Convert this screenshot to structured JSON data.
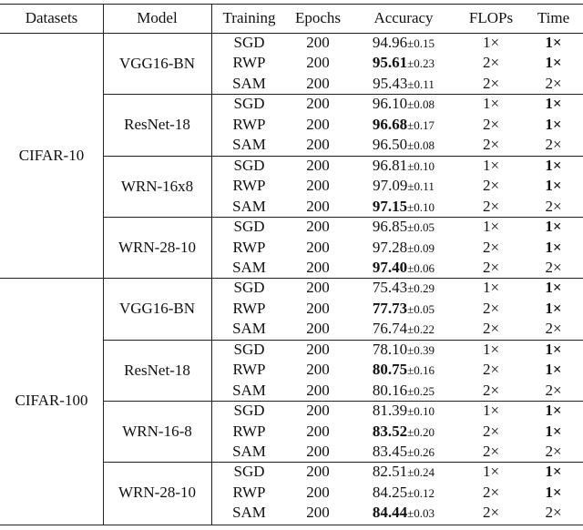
{
  "header": [
    "Datasets",
    "Model",
    "Training",
    "Epochs",
    "Accuracy",
    "FLOPs",
    "Time"
  ],
  "datasets": [
    {
      "name": "CIFAR-10",
      "models": [
        {
          "name": "VGG16-BN",
          "rows": [
            {
              "training": "SGD",
              "epochs": 200,
              "accuracy": "94.96",
              "std": "±0.15",
              "best": false,
              "flops": "1×",
              "time": "1×",
              "time_bold": true
            },
            {
              "training": "RWP",
              "epochs": 200,
              "accuracy": "95.61",
              "std": "±0.23",
              "best": true,
              "flops": "2×",
              "time": "1×",
              "time_bold": true
            },
            {
              "training": "SAM",
              "epochs": 200,
              "accuracy": "95.43",
              "std": "±0.11",
              "best": false,
              "flops": "2×",
              "time": "2×",
              "time_bold": false
            }
          ]
        },
        {
          "name": "ResNet-18",
          "rows": [
            {
              "training": "SGD",
              "epochs": 200,
              "accuracy": "96.10",
              "std": "±0.08",
              "best": false,
              "flops": "1×",
              "time": "1×",
              "time_bold": true
            },
            {
              "training": "RWP",
              "epochs": 200,
              "accuracy": "96.68",
              "std": "±0.17",
              "best": true,
              "flops": "2×",
              "time": "1×",
              "time_bold": true
            },
            {
              "training": "SAM",
              "epochs": 200,
              "accuracy": "96.50",
              "std": "±0.08",
              "best": false,
              "flops": "2×",
              "time": "2×",
              "time_bold": false
            }
          ]
        },
        {
          "name": "WRN-16x8",
          "rows": [
            {
              "training": "SGD",
              "epochs": 200,
              "accuracy": "96.81",
              "std": "±0.10",
              "best": false,
              "flops": "1×",
              "time": "1×",
              "time_bold": true
            },
            {
              "training": "RWP",
              "epochs": 200,
              "accuracy": "97.09",
              "std": "±0.11",
              "best": false,
              "flops": "2×",
              "time": "1×",
              "time_bold": true
            },
            {
              "training": "SAM",
              "epochs": 200,
              "accuracy": "97.15",
              "std": "±0.10",
              "best": true,
              "flops": "2×",
              "time": "2×",
              "time_bold": false
            }
          ]
        },
        {
          "name": "WRN-28-10",
          "rows": [
            {
              "training": "SGD",
              "epochs": 200,
              "accuracy": "96.85",
              "std": "±0.05",
              "best": false,
              "flops": "1×",
              "time": "1×",
              "time_bold": true
            },
            {
              "training": "RWP",
              "epochs": 200,
              "accuracy": "97.28",
              "std": "±0.09",
              "best": false,
              "flops": "2×",
              "time": "1×",
              "time_bold": true
            },
            {
              "training": "SAM",
              "epochs": 200,
              "accuracy": "97.40",
              "std": "±0.06",
              "best": true,
              "flops": "2×",
              "time": "2×",
              "time_bold": false
            }
          ]
        }
      ]
    },
    {
      "name": "CIFAR-100",
      "models": [
        {
          "name": "VGG16-BN",
          "rows": [
            {
              "training": "SGD",
              "epochs": 200,
              "accuracy": "75.43",
              "std": "±0.29",
              "best": false,
              "flops": "1×",
              "time": "1×",
              "time_bold": true
            },
            {
              "training": "RWP",
              "epochs": 200,
              "accuracy": "77.73",
              "std": "±0.05",
              "best": true,
              "flops": "2×",
              "time": "1×",
              "time_bold": true
            },
            {
              "training": "SAM",
              "epochs": 200,
              "accuracy": "76.74",
              "std": "±0.22",
              "best": false,
              "flops": "2×",
              "time": "2×",
              "time_bold": false
            }
          ]
        },
        {
          "name": "ResNet-18",
          "rows": [
            {
              "training": "SGD",
              "epochs": 200,
              "accuracy": "78.10",
              "std": "±0.39",
              "best": false,
              "flops": "1×",
              "time": "1×",
              "time_bold": true
            },
            {
              "training": "RWP",
              "epochs": 200,
              "accuracy": "80.75",
              "std": "±0.16",
              "best": true,
              "flops": "2×",
              "time": "1×",
              "time_bold": true
            },
            {
              "training": "SAM",
              "epochs": 200,
              "accuracy": "80.16",
              "std": "±0.25",
              "best": false,
              "flops": "2×",
              "time": "2×",
              "time_bold": false
            }
          ]
        },
        {
          "name": "WRN-16-8",
          "rows": [
            {
              "training": "SGD",
              "epochs": 200,
              "accuracy": "81.39",
              "std": "±0.10",
              "best": false,
              "flops": "1×",
              "time": "1×",
              "time_bold": true
            },
            {
              "training": "RWP",
              "epochs": 200,
              "accuracy": "83.52",
              "std": "±0.20",
              "best": true,
              "flops": "2×",
              "time": "1×",
              "time_bold": true
            },
            {
              "training": "SAM",
              "epochs": 200,
              "accuracy": "83.45",
              "std": "±0.26",
              "best": false,
              "flops": "2×",
              "time": "2×",
              "time_bold": false
            }
          ]
        },
        {
          "name": "WRN-28-10",
          "rows": [
            {
              "training": "SGD",
              "epochs": 200,
              "accuracy": "82.51",
              "std": "±0.24",
              "best": false,
              "flops": "1×",
              "time": "1×",
              "time_bold": true
            },
            {
              "training": "RWP",
              "epochs": 200,
              "accuracy": "84.25",
              "std": "±0.12",
              "best": false,
              "flops": "2×",
              "time": "1×",
              "time_bold": true
            },
            {
              "training": "SAM",
              "epochs": 200,
              "accuracy": "84.44",
              "std": "±0.03",
              "best": true,
              "flops": "2×",
              "time": "2×",
              "time_bold": false
            }
          ]
        }
      ]
    }
  ]
}
